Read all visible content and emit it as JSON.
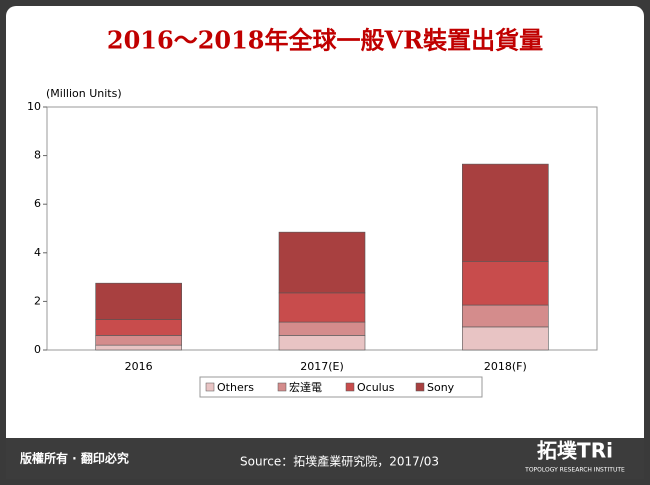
{
  "chart_data": {
    "type": "stacked_bar",
    "title": "2016～2018年全球一般VR裝置出貨量",
    "y_label": "(Million Units)",
    "categories": [
      "2016",
      "2017(E)",
      "2018(F)"
    ],
    "series": [
      {
        "name": "Others",
        "color": "#e8c4c4",
        "values": [
          0.2,
          0.6,
          0.95
        ]
      },
      {
        "name": "宏達電",
        "color": "#d48c8c",
        "values": [
          0.4,
          0.55,
          0.9
        ]
      },
      {
        "name": "Oculus",
        "color": "#c84c4c",
        "values": [
          0.65,
          1.2,
          1.8
        ]
      },
      {
        "name": "Sony",
        "color": "#a84040",
        "values": [
          1.5,
          2.5,
          4.0
        ]
      }
    ],
    "ylim": [
      0,
      10
    ],
    "yticks": [
      0,
      2,
      4,
      6,
      8,
      10
    ],
    "legend": "bottom"
  },
  "footer": {
    "rights": "版權所有 · 翻印必究",
    "source": "Source：拓墣產業研究院，2017/03",
    "logo": "拓墣TRi",
    "logo_sub": "TOPOLOGY RESEARCH INSTITUTE"
  }
}
